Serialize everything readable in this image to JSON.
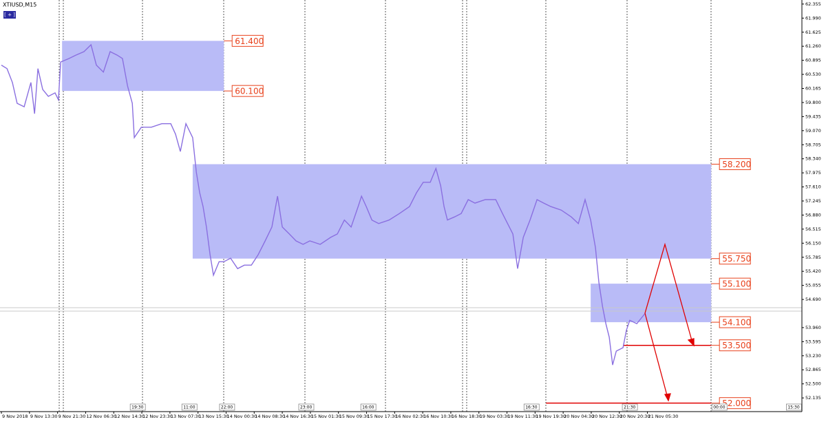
{
  "chart_data": {
    "type": "line",
    "title": "XTIUSD,M15",
    "toggle_label": "[ + ]",
    "xlim": [
      -0.05,
      28.5
    ],
    "ylim": [
      51.78,
      62.46
    ],
    "xticks": [
      {
        "value": 0,
        "label": "9 Nov 2018"
      },
      {
        "value": 1,
        "label": "9 Nov 13:30"
      },
      {
        "value": 2,
        "label": "9 Nov 21:30"
      },
      {
        "value": 3,
        "label": "12 Nov 06:30"
      },
      {
        "value": 4,
        "label": "12 Nov 14:30"
      },
      {
        "value": 5,
        "label": "12 Nov 23:30"
      },
      {
        "value": 6,
        "label": "13 Nov 07:30"
      },
      {
        "value": 7,
        "label": "13 Nov 15:30"
      },
      {
        "value": 8,
        "label": "14 Nov 00:30"
      },
      {
        "value": 9,
        "label": "14 Nov 08:30"
      },
      {
        "value": 10,
        "label": "14 Nov 16:30"
      },
      {
        "value": 11,
        "label": "15 Nov 01:30"
      },
      {
        "value": 12,
        "label": "15 Nov 09:30"
      },
      {
        "value": 13,
        "label": "15 Nov 17:30"
      },
      {
        "value": 14,
        "label": "16 Nov 02:30"
      },
      {
        "value": 15,
        "label": "16 Nov 10:30"
      },
      {
        "value": 16,
        "label": "16 Nov 18:30"
      },
      {
        "value": 17,
        "label": "19 Nov 03:30"
      },
      {
        "value": 18,
        "label": "19 Nov 11:30"
      },
      {
        "value": 19,
        "label": "19 Nov 19:30"
      },
      {
        "value": 20,
        "label": "20 Nov 04:30"
      },
      {
        "value": 21,
        "label": "20 Nov 12:30"
      },
      {
        "value": 22,
        "label": "20 Nov 20:30"
      },
      {
        "value": 23,
        "label": "21 Nov 05:30"
      }
    ],
    "yticks": [
      62.355,
      {
        "value": 61.99,
        "label": "61.990"
      },
      61.625,
      {
        "value": 61.26,
        "label": "61.260"
      },
      60.895,
      {
        "value": 60.53,
        "label": "60.530"
      },
      60.165,
      {
        "value": 59.8,
        "label": "59.800"
      },
      59.435,
      {
        "value": 59.07,
        "label": "59.070"
      },
      58.705,
      {
        "value": 58.34,
        "label": "58.340"
      },
      57.975,
      {
        "value": 57.61,
        "label": "57.610"
      },
      57.245,
      {
        "value": 56.88,
        "label": "56.880"
      },
      56.515,
      {
        "value": 56.15,
        "label": "56.150"
      },
      55.785,
      {
        "value": 55.42,
        "label": "55.420"
      },
      55.055,
      {
        "value": 54.69,
        "label": "54.690"
      },
      {
        "value": 53.96,
        "label": "53.960"
      },
      53.595,
      {
        "value": 53.23,
        "label": "53.230"
      },
      52.865,
      {
        "value": 52.5,
        "label": "52.500"
      },
      52.135
    ],
    "series": [
      {
        "color": "#8a6fe0",
        "x": [
          0,
          0.2,
          0.39,
          0.56,
          0.81,
          1.05,
          1.18,
          1.3,
          1.47,
          1.67,
          1.91,
          2.03,
          2.11,
          2.4,
          2.65,
          2.94,
          3.19,
          3.38,
          3.63,
          3.87,
          4.12,
          4.31,
          4.49,
          4.66,
          4.73,
          4.98,
          5.34,
          5.71,
          6.03,
          6.2,
          6.37,
          6.57,
          6.81,
          6.94,
          7.06,
          7.18,
          7.3,
          7.43,
          7.55,
          7.75,
          7.92,
          8.16,
          8.41,
          8.65,
          8.9,
          9.14,
          9.39,
          9.63,
          9.83,
          10,
          10.25,
          10.49,
          10.74,
          10.98,
          11.35,
          11.72,
          11.96,
          12.21,
          12.45,
          12.7,
          12.82,
          12.99,
          13.19,
          13.43,
          13.8,
          14.17,
          14.53,
          14.78,
          15.02,
          15.27,
          15.47,
          15.64,
          15.76,
          15.88,
          16.13,
          16.37,
          16.62,
          16.86,
          17.23,
          17.6,
          17.84,
          18.21,
          18.38,
          18.58,
          18.82,
          19.07,
          19.31,
          19.56,
          19.93,
          20.29,
          20.54,
          20.78,
          20.98,
          21.15,
          21.27,
          21.4,
          21.52,
          21.64,
          21.76,
          21.89,
          22.13,
          22.25,
          22.37,
          22.62,
          22.92
        ],
        "values": [
          60.77,
          60.68,
          60.32,
          59.78,
          59.69,
          60.32,
          59.51,
          60.68,
          60.14,
          59.96,
          60.05,
          59.87,
          60.85,
          60.94,
          61.03,
          61.12,
          61.3,
          60.77,
          60.59,
          61.12,
          61.03,
          60.94,
          60.23,
          59.78,
          58.89,
          59.16,
          59.16,
          59.25,
          59.25,
          58.98,
          58.53,
          59.25,
          58.89,
          57.995,
          57.46,
          57.1,
          56.57,
          55.85,
          55.32,
          55.67,
          55.67,
          55.76,
          55.49,
          55.58,
          55.58,
          55.85,
          56.21,
          56.57,
          57.37,
          56.57,
          56.39,
          56.21,
          56.12,
          56.21,
          56.12,
          56.3,
          56.39,
          56.75,
          56.57,
          57.1,
          57.37,
          57.1,
          56.75,
          56.66,
          56.75,
          56.92,
          57.1,
          57.46,
          57.73,
          57.73,
          58.09,
          57.64,
          57.1,
          56.75,
          56.83,
          56.92,
          57.28,
          57.19,
          57.28,
          57.28,
          56.92,
          56.39,
          55.49,
          56.3,
          56.75,
          57.28,
          57.19,
          57.1,
          57.01,
          56.83,
          56.66,
          57.28,
          56.75,
          56.03,
          55.14,
          54.51,
          54.06,
          53.71,
          52.99,
          53.35,
          53.44,
          53.89,
          54.15,
          54.06,
          54.33
        ]
      }
    ],
    "zones": [
      {
        "x": [
          2.16,
          7.92
        ],
        "top": {
          "value": 61.4,
          "label": "61.400"
        },
        "bottom": {
          "value": 60.1,
          "label": "60.100"
        }
      },
      {
        "x": [
          6.81,
          25.27
        ],
        "top": {
          "value": 58.2,
          "label": "58.200"
        },
        "bottom": {
          "value": 55.75,
          "label": "55.750"
        }
      },
      {
        "x": [
          20.98,
          25.27
        ],
        "top": {
          "value": 55.1,
          "label": "55.100"
        },
        "bottom": {
          "value": 54.1,
          "label": "54.100"
        }
      }
    ],
    "levels": [
      {
        "x": [
          22.13,
          25.27
        ],
        "value": 53.5,
        "label": "53.500"
      },
      {
        "x": [
          19.39,
          25.27
        ],
        "value": 52,
        "label": "52.000"
      }
    ],
    "time_markers": [
      {
        "x": 4.61,
        "label": "19:30"
      },
      {
        "x": 6.45,
        "label": "11:00"
      },
      {
        "x": 7.79,
        "label": "22:00"
      },
      {
        "x": 10.61,
        "label": "23:00"
      },
      {
        "x": 12.82,
        "label": "16:00"
      },
      {
        "x": 18.63,
        "label": "16:30"
      },
      {
        "x": 22.13,
        "label": "21:30"
      },
      {
        "x": 25.32,
        "label": "00:00"
      },
      {
        "x": 27.97,
        "label": "15:30"
      }
    ],
    "zone_color": "#b9bbf7",
    "level_color": "#e00000",
    "label_color": "#e8401a"
  }
}
